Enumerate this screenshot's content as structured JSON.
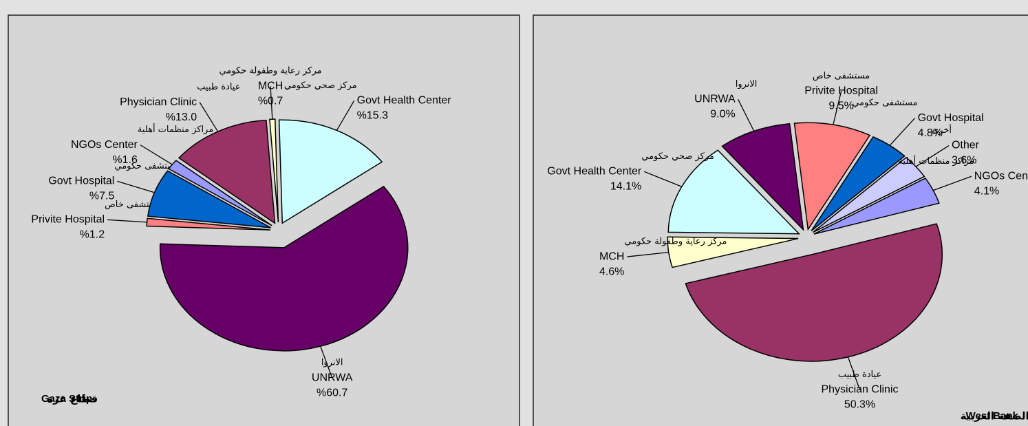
{
  "chart_data": [
    {
      "type": "pie",
      "title": "Gaza Strip",
      "title_ar": "قطاع غزة",
      "categories": [
        "MCH",
        "Govt Health Center",
        "UNRWA",
        "Privite Hospital",
        "Govt Hospital",
        "NGOs Center",
        "Physician Clinic"
      ],
      "categories_ar": [
        "مركز رعاية وطفولة حكومي",
        "مركز صحي حكومي",
        "الانروا",
        "مستشفى خاص",
        "مستشفى حكومي",
        "مراكز منظمات أهلية",
        "عيادة طبيب"
      ],
      "values": [
        0.7,
        15.3,
        60.7,
        1.2,
        7.5,
        1.6,
        13.0
      ],
      "value_labels": [
        "%0.7",
        "%15.3",
        "%60.7",
        "%1.2",
        "%7.5",
        "%1.6",
        "%13.0"
      ],
      "colors": [
        "#ffffcc",
        "#ccffff",
        "#660066",
        "#ff8080",
        "#0066cc",
        "#9999ff",
        "#993366"
      ]
    },
    {
      "type": "pie",
      "title": "West Bank",
      "title_ar": "الضفة الغربية",
      "categories": [
        "Privite Hospital",
        "Govt Hospital",
        "Other",
        "NGOs Center",
        "Physician Clinic",
        "MCH",
        "Govt Health Center",
        "UNRWA"
      ],
      "categories_ar": [
        "مستشفى خاص",
        "مستشفى حكومي",
        "أخرى",
        "مراكز منظمات أهلية",
        "عيادة طبيب",
        "مركز رعاية وطفولة حكومي",
        "مركز صحي حكومي",
        "الانروا"
      ],
      "values": [
        9.5,
        4.8,
        3.6,
        4.1,
        50.3,
        4.6,
        14.1,
        9.0
      ],
      "value_labels": [
        "9.5%",
        "4.8%",
        "3.6%",
        "4.1%",
        "50.3%",
        "4.6%",
        "14.1%",
        "9.0%"
      ],
      "colors": [
        "#ff8080",
        "#0066cc",
        "#ccccff",
        "#9999ff",
        "#993366",
        "#ffffcc",
        "#ccffff",
        "#660066"
      ]
    }
  ]
}
